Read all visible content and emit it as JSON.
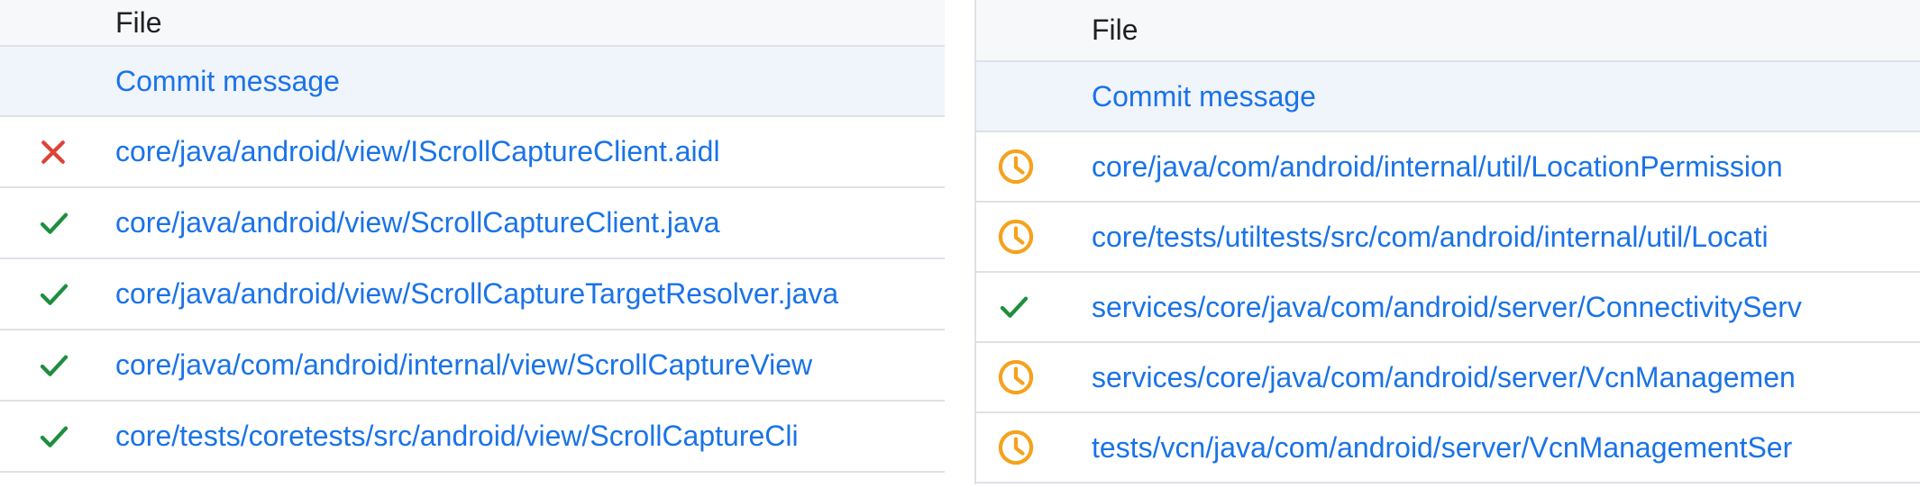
{
  "colors": {
    "link_blue": "#1a73e8",
    "header_text": "#202124",
    "header_bg": "#f7f8fa",
    "commit_row_bg": "#f0f4fb",
    "row_border": "#dee1e6",
    "status_passed_green": "#1e8e3e",
    "status_failed_red": "#db4437",
    "status_pending_orange": "#f5a21c"
  },
  "panels": [
    {
      "id": "left",
      "column_header": "File",
      "commit_link": "Commit message",
      "files": [
        {
          "status": "failed",
          "icon": "x-icon",
          "path": "core/java/android/view/IScrollCaptureClient.aidl"
        },
        {
          "status": "passed",
          "icon": "check-icon",
          "path": "core/java/android/view/ScrollCaptureClient.java"
        },
        {
          "status": "passed",
          "icon": "check-icon",
          "path": "core/java/android/view/ScrollCaptureTargetResolver.java"
        },
        {
          "status": "passed",
          "icon": "check-icon",
          "path": "core/java/com/android/internal/view/ScrollCaptureView"
        },
        {
          "status": "passed",
          "icon": "check-icon",
          "path": "core/tests/coretests/src/android/view/ScrollCaptureCli"
        }
      ]
    },
    {
      "id": "right",
      "column_header": "File",
      "commit_link": "Commit message",
      "files": [
        {
          "status": "pending",
          "icon": "clock-icon",
          "path": "core/java/com/android/internal/util/LocationPermission"
        },
        {
          "status": "pending",
          "icon": "clock-icon",
          "path": "core/tests/utiltests/src/com/android/internal/util/Locati"
        },
        {
          "status": "passed",
          "icon": "check-icon",
          "path": "services/core/java/com/android/server/ConnectivityServ"
        },
        {
          "status": "pending",
          "icon": "clock-icon",
          "path": "services/core/java/com/android/server/VcnManagemen"
        },
        {
          "status": "pending",
          "icon": "clock-icon",
          "path": "tests/vcn/java/com/android/server/VcnManagementSer"
        }
      ]
    }
  ]
}
